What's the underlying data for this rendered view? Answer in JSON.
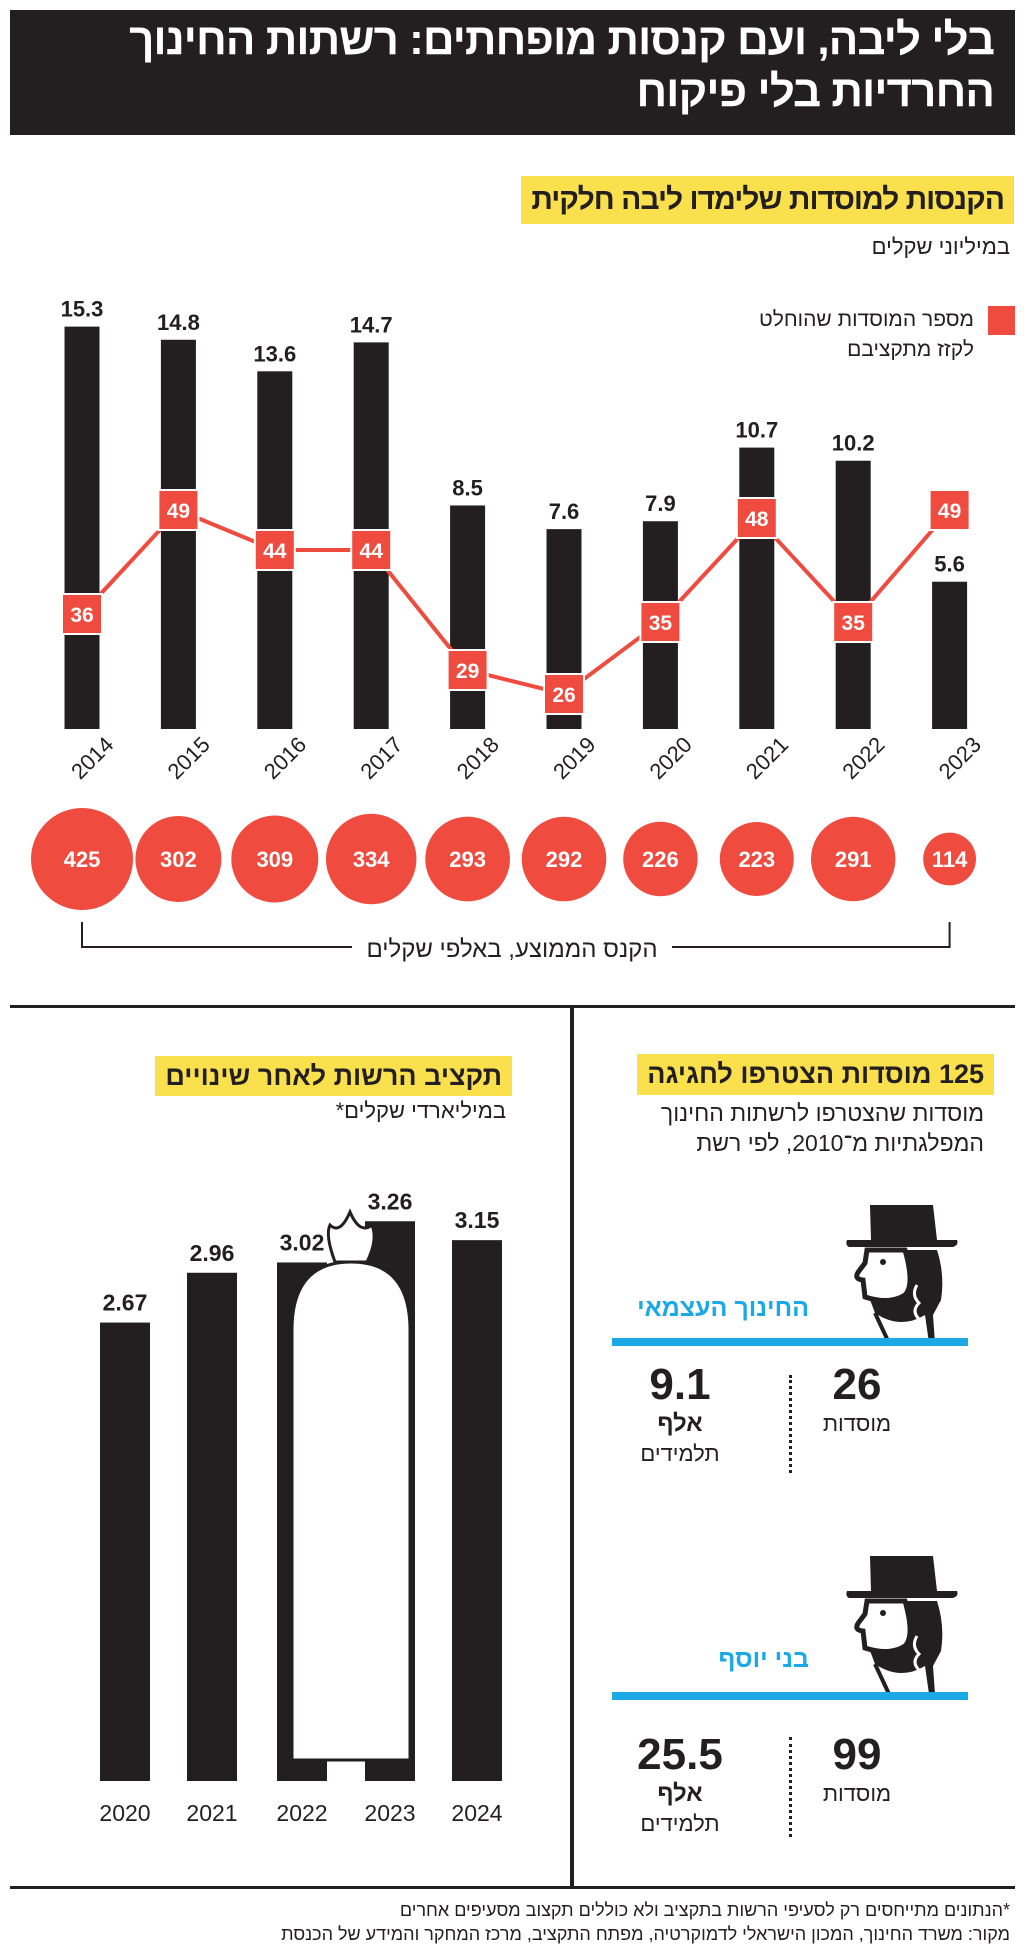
{
  "header": {
    "title": "בלי ליבה, ועם קנסות מופחתים: רשתות החינוך החרדיות בלי פיקוח"
  },
  "chart_data": [
    {
      "type": "bar",
      "title": "הקנסות למוסדות שלימדו ליבה חלקית",
      "ylabel": "במיליוני שקלים",
      "categories": [
        "2014",
        "2015",
        "2016",
        "2017",
        "2018",
        "2019",
        "2020",
        "2021",
        "2022",
        "2023"
      ],
      "values": [
        15.3,
        14.8,
        13.6,
        14.7,
        8.5,
        7.6,
        7.9,
        10.7,
        10.2,
        5.6
      ],
      "line_series": {
        "name": "מספר המוסדות שהוחלט לקזז מתקציבם",
        "values": [
          36,
          49,
          44,
          44,
          29,
          26,
          35,
          48,
          35,
          49
        ],
        "color": "#ef4b3f"
      },
      "bubble_series": {
        "name": "הקנס הממוצע, באלפי שקלים",
        "values": [
          425,
          302,
          309,
          334,
          293,
          292,
          226,
          223,
          291,
          114
        ],
        "color": "#ef4b3f"
      },
      "legend": "top-right",
      "grid": false
    },
    {
      "type": "bar",
      "title": "תקציב הרשות לאחר שינויים",
      "ylabel": "במיליארדי שקלים*",
      "categories": [
        "2020",
        "2021",
        "2022",
        "2023",
        "2024"
      ],
      "values": [
        2.67,
        2.96,
        3.02,
        3.26,
        3.15
      ],
      "grid": false
    }
  ],
  "legend": {
    "line1": "מספר המוסדות שהוחלט",
    "line2": "לקזז מתקציבם"
  },
  "networks": {
    "title": "125 מוסדות הצטרפו לחגיגה",
    "subtitle_line1": "מוסדות שהצטרפו לרשתות החינוך",
    "subtitle_line2": "המפלגתיות מ־2010, לפי רשת",
    "items": [
      {
        "name": "החינוך העצמאי",
        "institutions": "26",
        "institutions_label": "מוסדות",
        "students": "9.1",
        "students_unit": "אלף",
        "students_label": "תלמידים"
      },
      {
        "name": "בני יוסף",
        "institutions": "99",
        "institutions_label": "מוסדות",
        "students": "25.5",
        "students_unit": "אלף",
        "students_label": "תלמידים"
      }
    ]
  },
  "footer": {
    "note": "*הנתונים מתייחסים רק לסעיפי הרשות בתקציב ולא כוללים תקצוב מסעיפים אחרים",
    "source": "מקור: משרד החינוך, המכון הישראלי לדמוקרטיה, מפתח התקציב, מרכז המחקר והמידע של הכנסת"
  },
  "colors": {
    "red": "#ef4b3f",
    "yellow": "#fbe04e",
    "cyan": "#1aa9e6",
    "black": "#231f20"
  }
}
